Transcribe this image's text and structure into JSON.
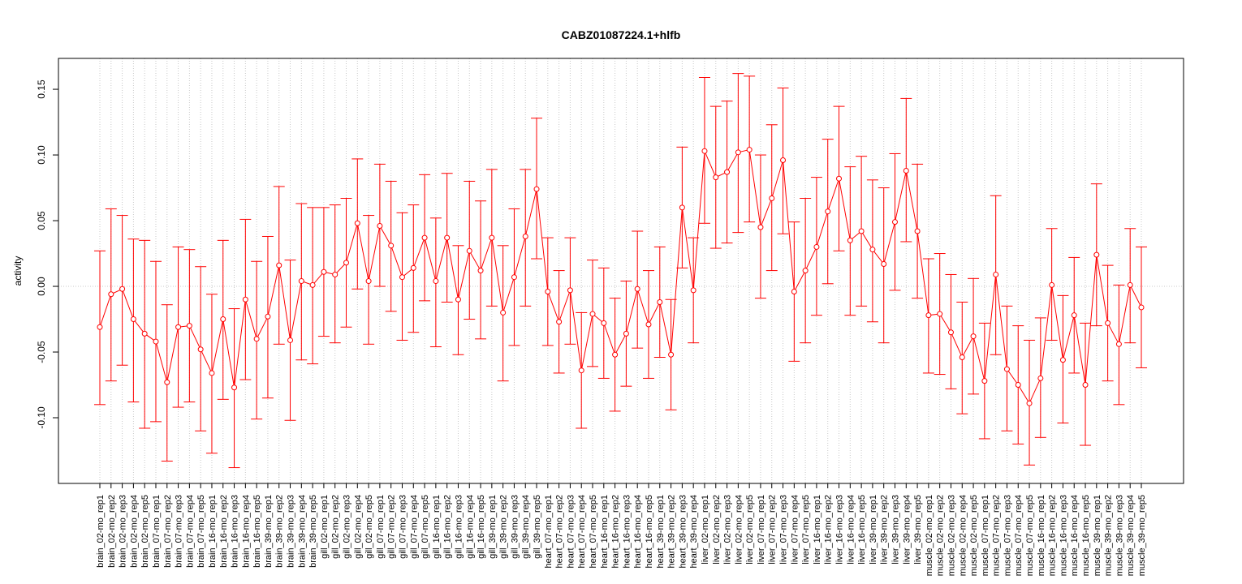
{
  "chart_data": {
    "type": "line",
    "title": "CABZ01087224.1+hlfb",
    "xlabel": "",
    "ylabel": "activity",
    "ylim": [
      -0.15,
      0.1735
    ],
    "yticks": [
      0.15,
      0.1,
      0.05,
      0.0,
      -0.05,
      -0.1
    ],
    "ytick_labels": [
      "0.15",
      "0.10",
      "0.05",
      "0.00",
      "-0.05",
      "-0.10"
    ],
    "grid": "dotted vertical at each sample, dotted horizontal at 0",
    "color": "#FF0000",
    "categories": [
      "brain_02-mo_rep1",
      "brain_02-mo_rep2",
      "brain_02-mo_rep3",
      "brain_02-mo_rep4",
      "brain_02-mo_rep5",
      "brain_07-mo_rep1",
      "brain_07-mo_rep2",
      "brain_07-mo_rep3",
      "brain_07-mo_rep4",
      "brain_07-mo_rep5",
      "brain_16-mo_rep1",
      "brain_16-mo_rep2",
      "brain_16-mo_rep3",
      "brain_16-mo_rep4",
      "brain_16-mo_rep5",
      "brain_39-mo_rep1",
      "brain_39-mo_rep2",
      "brain_39-mo_rep3",
      "brain_39-mo_rep4",
      "brain_39-mo_rep5",
      "gill_02-mo_rep1",
      "gill_02-mo_rep2",
      "gill_02-mo_rep3",
      "gill_02-mo_rep4",
      "gill_02-mo_rep5",
      "gill_07-mo_rep1",
      "gill_07-mo_rep2",
      "gill_07-mo_rep3",
      "gill_07-mo_rep4",
      "gill_07-mo_rep5",
      "gill_16-mo_rep1",
      "gill_16-mo_rep2",
      "gill_16-mo_rep3",
      "gill_16-mo_rep4",
      "gill_16-mo_rep5",
      "gill_39-mo_rep1",
      "gill_39-mo_rep2",
      "gill_39-mo_rep3",
      "gill_39-mo_rep4",
      "gill_39-mo_rep5",
      "heart_07-mo_rep1",
      "heart_07-mo_rep2",
      "heart_07-mo_rep3",
      "heart_07-mo_rep4",
      "heart_07-mo_rep5",
      "heart_16-mo_rep1",
      "heart_16-mo_rep2",
      "heart_16-mo_rep3",
      "heart_16-mo_rep4",
      "heart_16-mo_rep5",
      "heart_39-mo_rep1",
      "heart_39-mo_rep2",
      "heart_39-mo_rep3",
      "heart_39-mo_rep4",
      "liver_02-mo_rep1",
      "liver_02-mo_rep2",
      "liver_02-mo_rep3",
      "liver_02-mo_rep4",
      "liver_02-mo_rep5",
      "liver_07-mo_rep1",
      "liver_07-mo_rep2",
      "liver_07-mo_rep3",
      "liver_07-mo_rep4",
      "liver_07-mo_rep5",
      "liver_16-mo_rep1",
      "liver_16-mo_rep2",
      "liver_16-mo_rep3",
      "liver_16-mo_rep4",
      "liver_16-mo_rep5",
      "liver_39-mo_rep1",
      "liver_39-mo_rep2",
      "liver_39-mo_rep3",
      "liver_39-mo_rep4",
      "liver_39-mo_rep5",
      "muscle_02-mo_rep1",
      "muscle_02-mo_rep2",
      "muscle_02-mo_rep3",
      "muscle_02-mo_rep4",
      "muscle_02-mo_rep5",
      "muscle_07-mo_rep1",
      "muscle_07-mo_rep2",
      "muscle_07-mo_rep3",
      "muscle_07-mo_rep4",
      "muscle_07-mo_rep5",
      "muscle_16-mo_rep1",
      "muscle_16-mo_rep2",
      "muscle_16-mo_rep3",
      "muscle_16-mo_rep4",
      "muscle_16-mo_rep5",
      "muscle_39-mo_rep1",
      "muscle_39-mo_rep2",
      "muscle_39-mo_rep3",
      "muscle_39-mo_rep4",
      "muscle_39-mo_rep5"
    ],
    "values": [
      -0.031,
      -0.006,
      -0.002,
      -0.025,
      -0.036,
      -0.042,
      -0.073,
      -0.031,
      -0.03,
      -0.048,
      -0.066,
      -0.025,
      -0.077,
      -0.01,
      -0.04,
      -0.023,
      0.016,
      -0.041,
      0.004,
      0.001,
      0.011,
      0.009,
      0.018,
      0.048,
      0.004,
      0.046,
      0.031,
      0.007,
      0.014,
      0.037,
      0.004,
      0.037,
      -0.01,
      0.027,
      0.012,
      0.037,
      -0.02,
      0.007,
      0.038,
      0.074,
      -0.004,
      -0.027,
      -0.003,
      -0.064,
      -0.021,
      -0.028,
      -0.052,
      -0.036,
      -0.002,
      -0.029,
      -0.012,
      -0.052,
      0.06,
      -0.003,
      0.103,
      0.083,
      0.087,
      0.102,
      0.104,
      0.045,
      0.067,
      0.096,
      -0.004,
      0.012,
      0.03,
      0.057,
      0.082,
      0.035,
      0.042,
      0.028,
      0.017,
      0.049,
      0.088,
      0.042,
      -0.022,
      -0.021,
      -0.035,
      -0.054,
      -0.038,
      -0.072,
      0.009,
      -0.063,
      -0.075,
      -0.089,
      -0.07,
      0.001,
      -0.056,
      -0.022,
      -0.075,
      0.024,
      -0.028,
      -0.044,
      0.001,
      -0.016
    ],
    "upper": [
      0.027,
      0.059,
      0.054,
      0.036,
      0.035,
      0.019,
      -0.014,
      0.03,
      0.028,
      0.015,
      -0.006,
      0.035,
      -0.017,
      0.051,
      0.019,
      0.038,
      0.076,
      0.02,
      0.063,
      0.06,
      0.06,
      0.062,
      0.067,
      0.097,
      0.054,
      0.093,
      0.08,
      0.056,
      0.062,
      0.085,
      0.052,
      0.086,
      0.031,
      0.08,
      0.065,
      0.089,
      0.031,
      0.059,
      0.089,
      0.128,
      0.037,
      0.012,
      0.037,
      -0.02,
      0.02,
      0.014,
      -0.009,
      0.004,
      0.042,
      0.012,
      0.03,
      -0.01,
      0.106,
      0.037,
      0.159,
      0.137,
      0.141,
      0.162,
      0.16,
      0.1,
      0.123,
      0.151,
      0.049,
      0.067,
      0.083,
      0.112,
      0.137,
      0.091,
      0.099,
      0.081,
      0.075,
      0.101,
      0.143,
      0.093,
      0.021,
      0.025,
      0.009,
      -0.012,
      0.006,
      -0.028,
      0.069,
      -0.015,
      -0.03,
      -0.041,
      -0.024,
      0.044,
      -0.007,
      0.022,
      -0.028,
      0.078,
      0.016,
      0.001,
      0.044,
      0.03
    ],
    "lower": [
      -0.09,
      -0.072,
      -0.06,
      -0.088,
      -0.108,
      -0.103,
      -0.133,
      -0.092,
      -0.088,
      -0.11,
      -0.127,
      -0.086,
      -0.138,
      -0.071,
      -0.101,
      -0.085,
      -0.044,
      -0.102,
      -0.056,
      -0.059,
      -0.038,
      -0.043,
      -0.031,
      -0.002,
      -0.044,
      0.0,
      -0.019,
      -0.041,
      -0.035,
      -0.011,
      -0.046,
      -0.012,
      -0.052,
      -0.025,
      -0.04,
      -0.015,
      -0.072,
      -0.045,
      -0.015,
      0.021,
      -0.045,
      -0.066,
      -0.044,
      -0.108,
      -0.061,
      -0.07,
      -0.095,
      -0.076,
      -0.047,
      -0.07,
      -0.054,
      -0.094,
      0.014,
      -0.043,
      0.048,
      0.029,
      0.033,
      0.041,
      0.049,
      -0.009,
      0.012,
      0.04,
      -0.057,
      -0.043,
      -0.022,
      0.002,
      0.027,
      -0.022,
      -0.015,
      -0.027,
      -0.043,
      -0.003,
      0.034,
      -0.009,
      -0.066,
      -0.067,
      -0.078,
      -0.097,
      -0.082,
      -0.116,
      -0.052,
      -0.11,
      -0.12,
      -0.136,
      -0.115,
      -0.041,
      -0.104,
      -0.066,
      -0.121,
      -0.03,
      -0.072,
      -0.09,
      -0.043,
      -0.062
    ]
  }
}
